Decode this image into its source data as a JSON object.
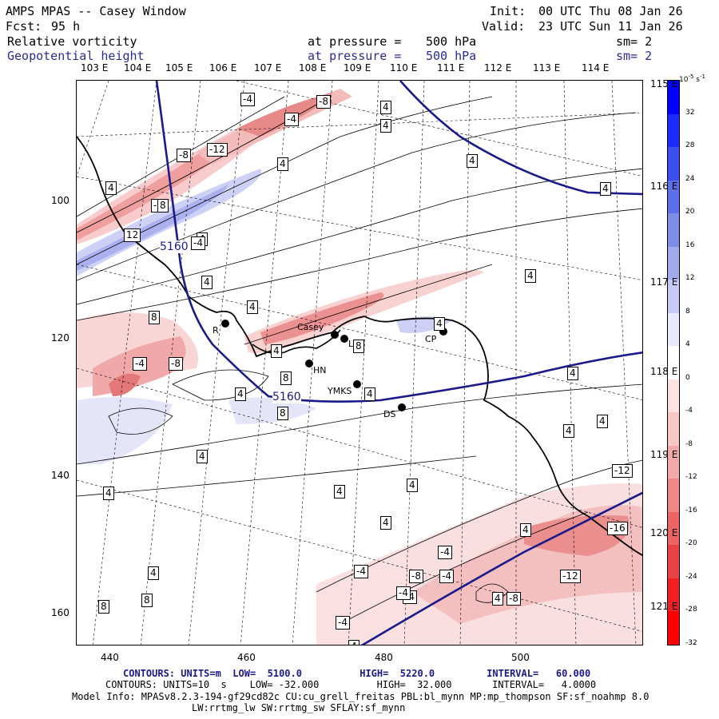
{
  "header": {
    "model": "AMPS MPAS -- Casey Window",
    "fcst_label": "Fcst:",
    "fcst_value": "95 h",
    "init_label": "Init:",
    "init_value": "00 UTC Thu 08 Jan 26",
    "valid_label": "Valid:",
    "valid_value": "23 UTC Sun 11 Jan 26",
    "field1": {
      "name": "Relative vorticity",
      "level": "at pressure =",
      "value": "500 hPa",
      "sm": "sm= 2"
    },
    "field2": {
      "name": "Geopotential height",
      "level": "at pressure =",
      "value": "500 hPa",
      "sm": "sm= 2"
    }
  },
  "axes": {
    "x_ticks": [
      "440",
      "460",
      "480",
      "500"
    ],
    "y_ticks": [
      "100",
      "120",
      "140",
      "160"
    ],
    "lon_top": [
      "103 E",
      "104 E",
      "105 E",
      "106 E",
      "107 E",
      "108 E",
      "109 E",
      "110 E",
      "111 E",
      "112 E",
      "113 E",
      "114 E"
    ],
    "lon_right": [
      "115 E",
      "116 E",
      "117 E",
      "118 E",
      "119 E",
      "120 E",
      "121 E"
    ]
  },
  "colorbar": {
    "unit": "10",
    "unit_exp": "-5",
    "unit_suffix": " s",
    "unit_suffix_exp": "-1",
    "levels": [
      "32",
      "28",
      "24",
      "20",
      "16",
      "12",
      "8",
      "4",
      "0",
      "-4",
      "-8",
      "-12",
      "-16",
      "-20",
      "-24",
      "-28",
      "-32"
    ],
    "colors": {
      "strong_positive": "#0000ff",
      "strong_negative": "#ff0000",
      "neutral": "#ffffff"
    }
  },
  "stations": [
    {
      "label": "Casey"
    },
    {
      "label": "LS"
    },
    {
      "label": "HN"
    },
    {
      "label": "YMKS"
    },
    {
      "label": "DS"
    },
    {
      "label": "CP"
    },
    {
      "label": "R"
    }
  ],
  "height_labels": [
    "5160",
    "5160"
  ],
  "vort_labels": [
    "-4",
    "-8",
    "-4",
    "4",
    "4",
    "-8",
    "-12",
    "4",
    "4",
    "-4",
    "8",
    "4",
    "12",
    "-4",
    "4",
    "4",
    "4",
    "8",
    "4",
    "8",
    "-4",
    "-8",
    "4",
    "8",
    "4",
    "4",
    "8",
    "4",
    "4",
    "8",
    "8",
    "4",
    "4",
    "4",
    "4",
    "4",
    "4",
    "4",
    "4",
    "4",
    "4",
    "-4",
    "-8",
    "-12",
    "-16",
    "-12",
    "-4",
    "-4",
    "-4",
    "-4",
    "-8",
    "-4",
    "4",
    "4"
  ],
  "footer": {
    "line1_label": "CONTOURS:",
    "line1": "UNITS=m  LOW=  5100.0          HIGH=  5220.0         INTERVAL=   60.000",
    "line2_label": "CONTOURS:",
    "line2": "UNITS=10  s    LOW= -32.000          HIGH=  32.000       INTERVAL=   4.0000",
    "line3": "Model Info: MPASv8.2.3-194-gf29cd82c CU:cu_grell_freitas PBL:bl_mynn MP:mp_thompson SF:sf_noahmp 8.0",
    "line4": "LW:rrtmg_lw SW:rrtmg_sw SFLAY:sf_mynn"
  }
}
